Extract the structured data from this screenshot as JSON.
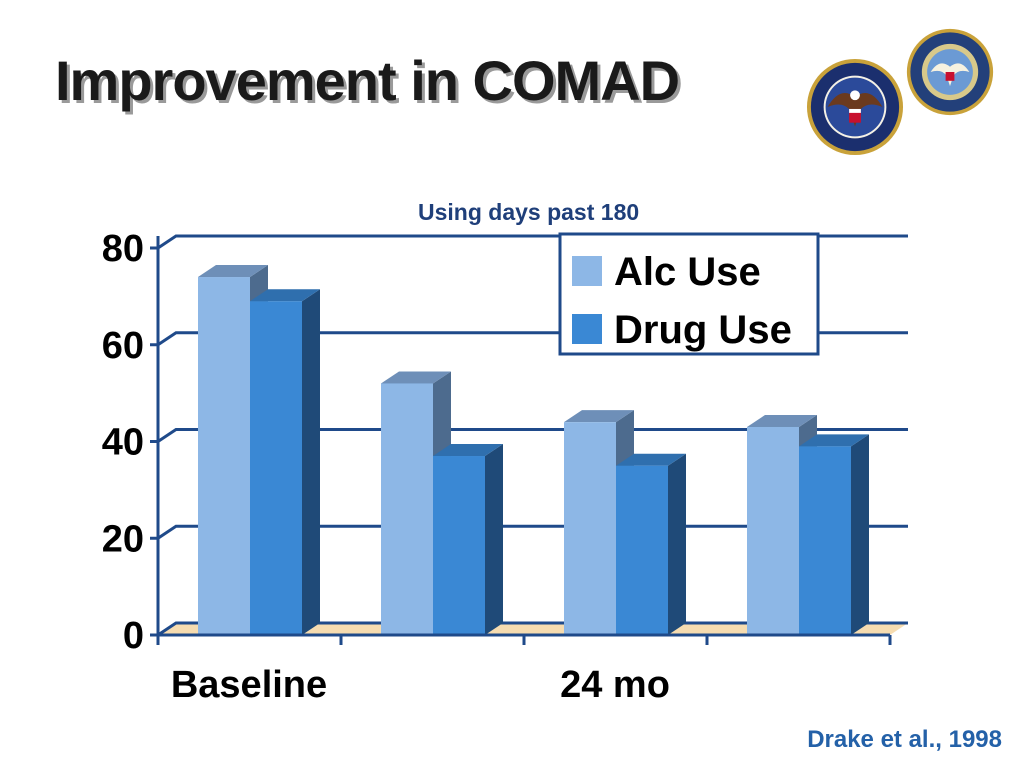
{
  "slide": {
    "title": "Improvement in COMAD",
    "citation": "Drake et al., 1998"
  },
  "seals": {
    "va_icon": "department-of-veterans-affairs-seal",
    "dod_icon": "department-of-defense-seal"
  },
  "colors": {
    "alc_front": "#8db7e6",
    "alc_side": "#4d6b8e",
    "alc_top": "#6e8fb8",
    "drug_front": "#3a88d4",
    "drug_side": "#1f4a78",
    "drug_top": "#2f6fae",
    "grid": "#1f4a8a",
    "floor": "#f6dcb0"
  },
  "chart_data": {
    "type": "bar",
    "subtitle": "Using days past 180",
    "categories": [
      "Baseline",
      "",
      "24 mo",
      ""
    ],
    "series": [
      {
        "name": "Alc Use",
        "values": [
          74,
          52,
          44,
          43
        ]
      },
      {
        "name": "Drug Use",
        "values": [
          69,
          37,
          35,
          39
        ]
      }
    ],
    "ylim": [
      0,
      80
    ],
    "yticks": [
      "0",
      "20",
      "40",
      "60",
      "80"
    ],
    "grid": true,
    "legend": "top-right",
    "style": "3d-clustered-column"
  }
}
